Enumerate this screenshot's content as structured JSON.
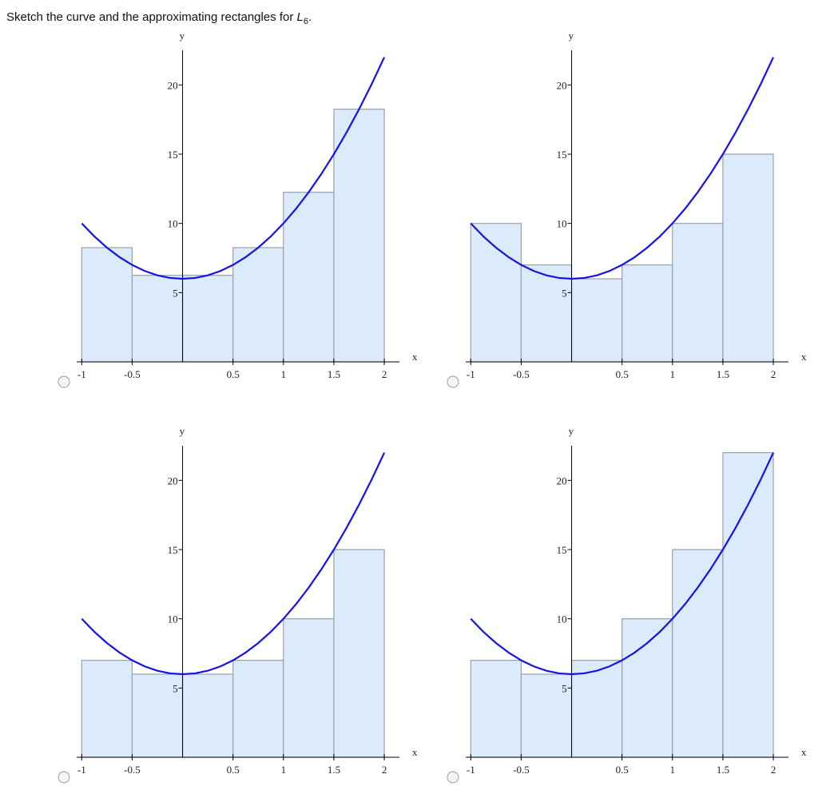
{
  "prompt": {
    "text": "Sketch the curve and the approximating rectangles for",
    "symbol": "L",
    "subscript": "6",
    "end": "."
  },
  "chart_data": [
    {
      "type": "histogram",
      "xlabel": "x",
      "ylabel": "y",
      "bins": [
        -1,
        -0.5,
        0,
        0.5,
        1,
        1.5,
        2
      ],
      "values": [
        8.25,
        6.25,
        6.25,
        8.25,
        12.25,
        18.25
      ],
      "curve": {
        "x": [
          -1,
          -0.875,
          -0.75,
          -0.625,
          -0.5,
          -0.375,
          -0.25,
          -0.125,
          0,
          0.125,
          0.25,
          0.375,
          0.5,
          0.625,
          0.75,
          0.875,
          1,
          1.125,
          1.25,
          1.375,
          1.5,
          1.625,
          1.75,
          1.875,
          2
        ],
        "y": [
          10,
          9.0625,
          8.25,
          7.5625,
          7,
          6.5625,
          6.25,
          6.0625,
          6,
          6.0625,
          6.25,
          6.5625,
          7,
          7.5625,
          8.25,
          9.0625,
          10,
          11.0625,
          12.25,
          13.5625,
          15,
          16.5625,
          18.25,
          20.0625,
          22
        ],
        "color": "#1414e6"
      },
      "color": "#dcebfc",
      "xlim": [
        -1.05,
        2.15
      ],
      "ylim": [
        0,
        22.5
      ],
      "xticks": [
        -1,
        -0.5,
        0.5,
        1,
        1.5,
        2
      ],
      "yticks": [
        5,
        10,
        15,
        20
      ]
    },
    {
      "type": "histogram",
      "xlabel": "x",
      "ylabel": "y",
      "bins": [
        -1,
        -0.5,
        0,
        0.5,
        1,
        1.5,
        2
      ],
      "values": [
        10,
        7,
        6,
        7,
        10,
        15
      ],
      "curve": {
        "x": [
          -1,
          -0.875,
          -0.75,
          -0.625,
          -0.5,
          -0.375,
          -0.25,
          -0.125,
          0,
          0.125,
          0.25,
          0.375,
          0.5,
          0.625,
          0.75,
          0.875,
          1,
          1.125,
          1.25,
          1.375,
          1.5,
          1.625,
          1.75,
          1.875,
          2
        ],
        "y": [
          10,
          9.0625,
          8.25,
          7.5625,
          7,
          6.5625,
          6.25,
          6.0625,
          6,
          6.0625,
          6.25,
          6.5625,
          7,
          7.5625,
          8.25,
          9.0625,
          10,
          11.0625,
          12.25,
          13.5625,
          15,
          16.5625,
          18.25,
          20.0625,
          22
        ],
        "color": "#1414e6"
      },
      "color": "#dcebfc",
      "xlim": [
        -1.05,
        2.15
      ],
      "ylim": [
        0,
        22.5
      ],
      "xticks": [
        -1,
        -0.5,
        0.5,
        1,
        1.5,
        2
      ],
      "yticks": [
        5,
        10,
        15,
        20
      ]
    },
    {
      "type": "histogram",
      "xlabel": "x",
      "ylabel": "y",
      "bins": [
        -1,
        -0.5,
        0,
        0.5,
        1,
        1.5,
        2
      ],
      "values": [
        7,
        6,
        6,
        7,
        10,
        15
      ],
      "curve": {
        "x": [
          -1,
          -0.875,
          -0.75,
          -0.625,
          -0.5,
          -0.375,
          -0.25,
          -0.125,
          0,
          0.125,
          0.25,
          0.375,
          0.5,
          0.625,
          0.75,
          0.875,
          1,
          1.125,
          1.25,
          1.375,
          1.5,
          1.625,
          1.75,
          1.875,
          2
        ],
        "y": [
          10,
          9.0625,
          8.25,
          7.5625,
          7,
          6.5625,
          6.25,
          6.0625,
          6,
          6.0625,
          6.25,
          6.5625,
          7,
          7.5625,
          8.25,
          9.0625,
          10,
          11.0625,
          12.25,
          13.5625,
          15,
          16.5625,
          18.25,
          20.0625,
          22
        ],
        "color": "#1414e6"
      },
      "color": "#dcebfc",
      "xlim": [
        -1.05,
        2.15
      ],
      "ylim": [
        0,
        22.5
      ],
      "xticks": [
        -1,
        -0.5,
        0.5,
        1,
        1.5,
        2
      ],
      "yticks": [
        5,
        10,
        15,
        20
      ]
    },
    {
      "type": "histogram",
      "xlabel": "x",
      "ylabel": "y",
      "bins": [
        -1,
        -0.5,
        0,
        0.5,
        1,
        1.5,
        2
      ],
      "values": [
        7,
        6,
        7,
        10,
        15,
        22
      ],
      "curve": {
        "x": [
          -1,
          -0.875,
          -0.75,
          -0.625,
          -0.5,
          -0.375,
          -0.25,
          -0.125,
          0,
          0.125,
          0.25,
          0.375,
          0.5,
          0.625,
          0.75,
          0.875,
          1,
          1.125,
          1.25,
          1.375,
          1.5,
          1.625,
          1.75,
          1.875,
          2
        ],
        "y": [
          10,
          9.0625,
          8.25,
          7.5625,
          7,
          6.5625,
          6.25,
          6.0625,
          6,
          6.0625,
          6.25,
          6.5625,
          7,
          7.5625,
          8.25,
          9.0625,
          10,
          11.0625,
          12.25,
          13.5625,
          15,
          16.5625,
          18.25,
          20.0625,
          22
        ],
        "color": "#1414e6"
      },
      "color": "#dcebfc",
      "xlim": [
        -1.05,
        2.15
      ],
      "ylim": [
        0,
        22.5
      ],
      "xticks": [
        -1,
        -0.5,
        0.5,
        1,
        1.5,
        2
      ],
      "yticks": [
        5,
        10,
        15,
        20
      ]
    }
  ]
}
